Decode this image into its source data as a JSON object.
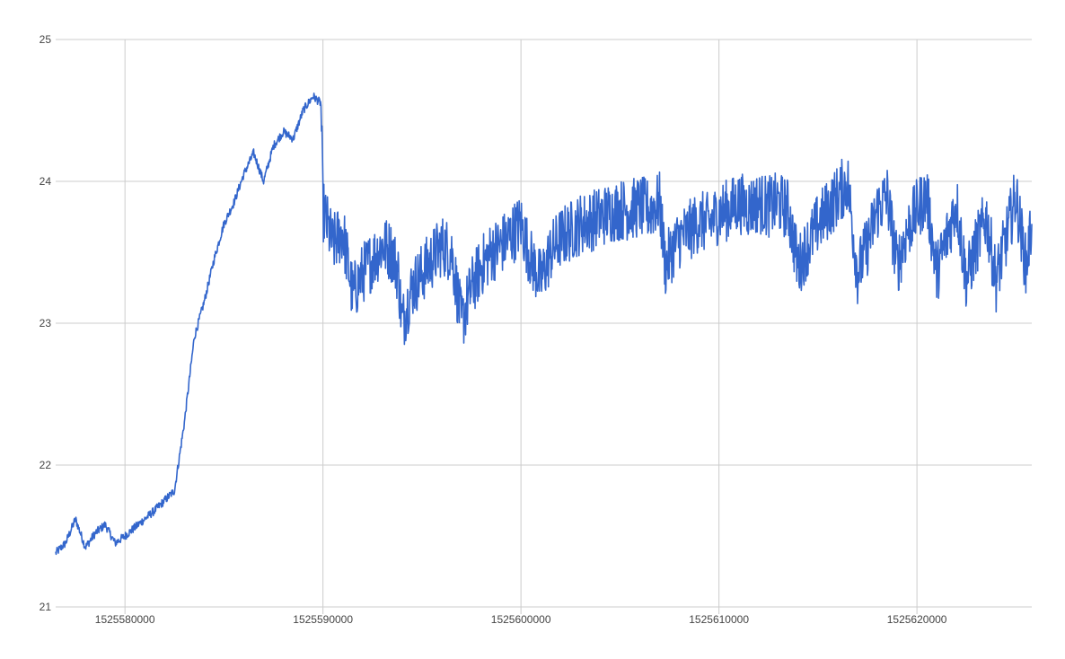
{
  "chart_data": {
    "type": "line",
    "title": "",
    "xlabel": "",
    "ylabel": "",
    "xlim": [
      1525576500,
      1525625800
    ],
    "ylim": [
      21,
      25
    ],
    "x_ticks": [
      1525580000,
      1525590000,
      1525600000,
      1525610000,
      1525620000
    ],
    "x_tick_labels": [
      "1525580000",
      "1525590000",
      "1525600000",
      "1525610000",
      "1525620000"
    ],
    "y_ticks": [
      21,
      22,
      23,
      24,
      25
    ],
    "y_tick_labels": [
      "21",
      "22",
      "23",
      "24",
      "25"
    ],
    "grid": true,
    "legend": "none",
    "line_color": "#3366cc",
    "grid_color": "#cccccc",
    "series": [
      {
        "x": [
          1525576500,
          1525577000,
          1525577500,
          1525578000,
          1525578500,
          1525579000,
          1525579500,
          1525580000,
          1525580500,
          1525581000,
          1525581500,
          1525582000,
          1525582500,
          1525583000,
          1525583500,
          1525584000,
          1525584500,
          1525585000,
          1525585500,
          1525586000,
          1525586500,
          1525587000,
          1525587500,
          1525588000,
          1525588500,
          1525589000,
          1525589500,
          1525589900,
          1525590000,
          1525590500,
          1525591000,
          1525591500,
          1525592000,
          1525592500,
          1525593000,
          1525593500,
          1525593800,
          1525594000,
          1525594500,
          1525595000,
          1525595500,
          1525596000,
          1525596500,
          1525597000,
          1525597500,
          1525598000,
          1525598500,
          1525599000,
          1525599500,
          1525600000,
          1525600500,
          1525601000,
          1525601500,
          1525602000,
          1525602500,
          1525603000,
          1525603500,
          1525604000,
          1525604500,
          1525605000,
          1525605500,
          1525606000,
          1525606500,
          1525607000,
          1525607300,
          1525607600,
          1525608000,
          1525608500,
          1525609000,
          1525609500,
          1525610000,
          1525610500,
          1525611000,
          1525611500,
          1525612000,
          1525612500,
          1525613000,
          1525613500,
          1525614000,
          1525614500,
          1525615000,
          1525615500,
          1525616000,
          1525616500,
          1525617000,
          1525617500,
          1525618000,
          1525618500,
          1525619000,
          1525619500,
          1525620000,
          1525620500,
          1525621000,
          1525621500,
          1525622000,
          1525622500,
          1525623000,
          1525623500,
          1525624000,
          1525624500,
          1525625000,
          1525625500,
          1525625800
        ],
        "y": [
          21.38,
          21.45,
          21.62,
          21.42,
          21.52,
          21.58,
          21.45,
          21.5,
          21.56,
          21.62,
          21.68,
          21.75,
          21.82,
          22.3,
          22.9,
          23.15,
          23.45,
          23.7,
          23.85,
          24.05,
          24.2,
          24.0,
          24.25,
          24.35,
          24.3,
          24.5,
          24.6,
          24.55,
          23.8,
          23.55,
          23.65,
          23.2,
          23.35,
          23.45,
          23.55,
          23.5,
          23.35,
          23.0,
          23.25,
          23.35,
          23.45,
          23.55,
          23.5,
          23.0,
          23.25,
          23.4,
          23.5,
          23.55,
          23.62,
          23.7,
          23.45,
          23.3,
          23.5,
          23.6,
          23.65,
          23.7,
          23.72,
          23.75,
          23.78,
          23.8,
          23.8,
          23.82,
          23.8,
          23.85,
          23.4,
          23.5,
          23.6,
          23.65,
          23.72,
          23.7,
          23.78,
          23.8,
          23.85,
          23.82,
          23.85,
          23.82,
          23.85,
          23.8,
          23.4,
          23.55,
          23.7,
          23.8,
          23.9,
          24.0,
          23.35,
          23.55,
          23.8,
          23.9,
          23.4,
          23.65,
          23.8,
          23.9,
          23.35,
          23.6,
          23.85,
          23.3,
          23.55,
          23.75,
          23.3,
          23.6,
          23.9,
          23.4,
          23.7
        ]
      }
    ]
  }
}
